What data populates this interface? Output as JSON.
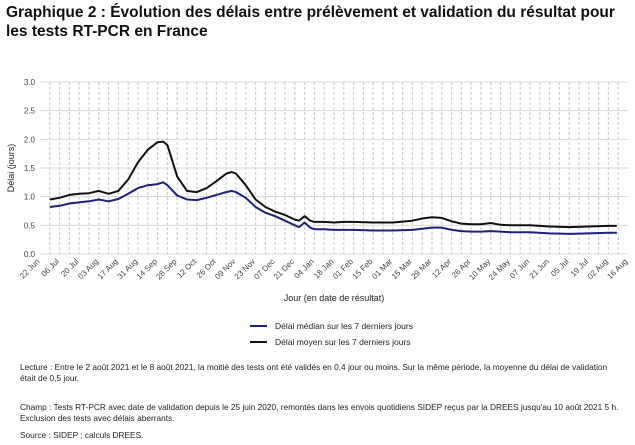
{
  "title": "Graphique 2 : Évolution des délais entre prélèvement et validation du résultat pour les tests RT-PCR en France",
  "notes": {
    "lecture": "Lecture : Entre le 2 août 2021 et le 8 août 2021, la moitié des tests ont été validés en 0,4 jour ou moins. Sur la même période, la moyenne du délai de validation était de 0,5 jour.",
    "champ": "Champ : Tests RT-PCR avec date de validation depuis le 25 juin 2020, remontés dans les envois quotidiens SIDEP reçus par la DREES jusqu'au 10 août 2021 5 h. Exclusion des tests avec délais aberrants.",
    "source": "Source : SIDEP ; calculs DREES."
  },
  "chart_data": {
    "type": "line",
    "title": "Graphique 2 : Évolution des délais entre prélèvement et validation du résultat pour les tests RT-PCR en France",
    "xlabel": "Jour (en date de résultat)",
    "ylabel": "Délai (jours)",
    "ylim": [
      0,
      3.0
    ],
    "xlim": [
      "2020-06-22",
      "2021-08-16"
    ],
    "yticks": [
      "0.0",
      "0.5",
      "1.0",
      "1.5",
      "2.0",
      "2.5",
      "3.0"
    ],
    "xtick_labels": [
      "22 Jun",
      "06 Jul",
      "20 Jul",
      "03 Aug",
      "17 Aug",
      "31 Aug",
      "14 Sep",
      "28 Sep",
      "12 Oct",
      "26 Oct",
      "09 Nov",
      "23 Nov",
      "07 Dec",
      "21 Dec",
      "04 Jan",
      "18 Jan",
      "01 Feb",
      "15 Feb",
      "01 Mar",
      "15 Mar",
      "29 Mar",
      "12 Apr",
      "26 Apr",
      "10 May",
      "24 May",
      "07 Jun",
      "21 Jun",
      "05 Jul",
      "19 Jul",
      "02 Aug",
      "16 Aug"
    ],
    "grid": true,
    "legend_position": "bottom",
    "series": [
      {
        "name": "Délai médian sur les 7 derniers jours",
        "color": "#1a237e",
        "points": [
          [
            "2020-06-29",
            0.82
          ],
          [
            "2020-07-06",
            0.84
          ],
          [
            "2020-07-13",
            0.88
          ],
          [
            "2020-07-20",
            0.9
          ],
          [
            "2020-07-27",
            0.92
          ],
          [
            "2020-08-03",
            0.95
          ],
          [
            "2020-08-10",
            0.92
          ],
          [
            "2020-08-17",
            0.96
          ],
          [
            "2020-08-24",
            1.05
          ],
          [
            "2020-08-31",
            1.15
          ],
          [
            "2020-09-07",
            1.2
          ],
          [
            "2020-09-14",
            1.22
          ],
          [
            "2020-09-18",
            1.25
          ],
          [
            "2020-09-21",
            1.2
          ],
          [
            "2020-09-28",
            1.02
          ],
          [
            "2020-10-05",
            0.95
          ],
          [
            "2020-10-12",
            0.94
          ],
          [
            "2020-10-19",
            0.98
          ],
          [
            "2020-10-26",
            1.03
          ],
          [
            "2020-11-02",
            1.08
          ],
          [
            "2020-11-06",
            1.1
          ],
          [
            "2020-11-09",
            1.08
          ],
          [
            "2020-11-16",
            0.98
          ],
          [
            "2020-11-23",
            0.82
          ],
          [
            "2020-11-30",
            0.72
          ],
          [
            "2020-12-07",
            0.66
          ],
          [
            "2020-12-14",
            0.58
          ],
          [
            "2020-12-21",
            0.5
          ],
          [
            "2020-12-24",
            0.47
          ],
          [
            "2020-12-28",
            0.55
          ],
          [
            "2021-01-01",
            0.46
          ],
          [
            "2021-01-04",
            0.43
          ],
          [
            "2021-01-11",
            0.43
          ],
          [
            "2021-01-18",
            0.42
          ],
          [
            "2021-01-25",
            0.42
          ],
          [
            "2021-02-01",
            0.42
          ],
          [
            "2021-02-15",
            0.41
          ],
          [
            "2021-03-01",
            0.41
          ],
          [
            "2021-03-15",
            0.42
          ],
          [
            "2021-03-22",
            0.44
          ],
          [
            "2021-03-29",
            0.46
          ],
          [
            "2021-04-05",
            0.46
          ],
          [
            "2021-04-12",
            0.42
          ],
          [
            "2021-04-19",
            0.4
          ],
          [
            "2021-04-26",
            0.39
          ],
          [
            "2021-05-03",
            0.39
          ],
          [
            "2021-05-10",
            0.4
          ],
          [
            "2021-05-17",
            0.39
          ],
          [
            "2021-05-24",
            0.38
          ],
          [
            "2021-06-07",
            0.38
          ],
          [
            "2021-06-21",
            0.36
          ],
          [
            "2021-07-05",
            0.35
          ],
          [
            "2021-07-19",
            0.36
          ],
          [
            "2021-08-02",
            0.37
          ],
          [
            "2021-08-08",
            0.37
          ]
        ]
      },
      {
        "name": "Délai moyen sur les 7 derniers jours",
        "color": "#111111",
        "points": [
          [
            "2020-06-29",
            0.95
          ],
          [
            "2020-07-06",
            0.98
          ],
          [
            "2020-07-13",
            1.03
          ],
          [
            "2020-07-20",
            1.05
          ],
          [
            "2020-07-27",
            1.06
          ],
          [
            "2020-08-03",
            1.1
          ],
          [
            "2020-08-10",
            1.05
          ],
          [
            "2020-08-17",
            1.1
          ],
          [
            "2020-08-24",
            1.3
          ],
          [
            "2020-08-31",
            1.6
          ],
          [
            "2020-09-07",
            1.82
          ],
          [
            "2020-09-14",
            1.95
          ],
          [
            "2020-09-18",
            1.96
          ],
          [
            "2020-09-21",
            1.9
          ],
          [
            "2020-09-28",
            1.35
          ],
          [
            "2020-10-05",
            1.1
          ],
          [
            "2020-10-12",
            1.08
          ],
          [
            "2020-10-19",
            1.15
          ],
          [
            "2020-10-26",
            1.27
          ],
          [
            "2020-11-02",
            1.4
          ],
          [
            "2020-11-06",
            1.43
          ],
          [
            "2020-11-09",
            1.4
          ],
          [
            "2020-11-16",
            1.2
          ],
          [
            "2020-11-23",
            0.95
          ],
          [
            "2020-11-30",
            0.82
          ],
          [
            "2020-12-07",
            0.74
          ],
          [
            "2020-12-14",
            0.68
          ],
          [
            "2020-12-21",
            0.6
          ],
          [
            "2020-12-24",
            0.58
          ],
          [
            "2020-12-28",
            0.66
          ],
          [
            "2021-01-01",
            0.58
          ],
          [
            "2021-01-04",
            0.56
          ],
          [
            "2021-01-11",
            0.56
          ],
          [
            "2021-01-18",
            0.55
          ],
          [
            "2021-01-25",
            0.56
          ],
          [
            "2021-02-01",
            0.56
          ],
          [
            "2021-02-15",
            0.55
          ],
          [
            "2021-03-01",
            0.55
          ],
          [
            "2021-03-15",
            0.58
          ],
          [
            "2021-03-22",
            0.62
          ],
          [
            "2021-03-29",
            0.64
          ],
          [
            "2021-04-05",
            0.63
          ],
          [
            "2021-04-12",
            0.57
          ],
          [
            "2021-04-19",
            0.53
          ],
          [
            "2021-04-26",
            0.52
          ],
          [
            "2021-05-03",
            0.52
          ],
          [
            "2021-05-10",
            0.54
          ],
          [
            "2021-05-17",
            0.51
          ],
          [
            "2021-05-24",
            0.5
          ],
          [
            "2021-06-07",
            0.5
          ],
          [
            "2021-06-21",
            0.48
          ],
          [
            "2021-07-05",
            0.47
          ],
          [
            "2021-07-19",
            0.48
          ],
          [
            "2021-08-02",
            0.49
          ],
          [
            "2021-08-08",
            0.49
          ]
        ]
      }
    ]
  }
}
